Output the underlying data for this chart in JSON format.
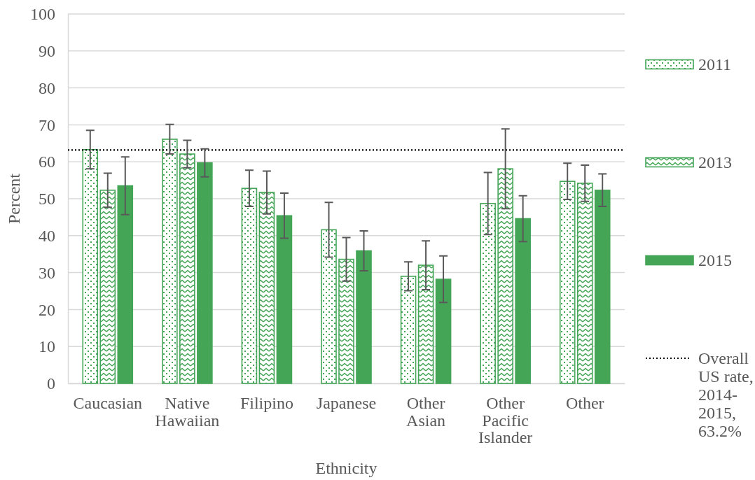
{
  "chart_data": {
    "type": "bar",
    "xlabel": "Ethnicity",
    "ylabel": "Percent",
    "categories": [
      "Caucasian",
      "Native Hawaiian",
      "Filipino",
      "Japanese",
      "Other Asian",
      "Other Pacific Islander",
      "Other"
    ],
    "series": [
      {
        "name": "2011",
        "color": "#44a557",
        "values": [
          63.3,
          66.1,
          52.8,
          41.6,
          29.0,
          48.7,
          54.7
        ],
        "errors": [
          5.2,
          4.0,
          4.9,
          7.4,
          3.9,
          8.4,
          4.9
        ]
      },
      {
        "name": "2013",
        "color": "#44a557",
        "values": [
          52.3,
          62.1,
          51.7,
          33.6,
          32.0,
          58.1,
          54.2
        ],
        "errors": [
          4.6,
          3.7,
          5.8,
          5.9,
          6.6,
          10.8,
          4.9
        ]
      },
      {
        "name": "2015",
        "color": "#44a557",
        "values": [
          53.5,
          59.7,
          45.4,
          35.9,
          28.2,
          44.6,
          52.3
        ],
        "errors": [
          7.8,
          3.8,
          6.1,
          5.4,
          6.3,
          6.2,
          4.4
        ]
      }
    ],
    "ylim": [
      0,
      100
    ],
    "yticks": [
      0,
      10,
      20,
      30,
      40,
      50,
      60,
      70,
      80,
      90,
      100
    ],
    "grid": "y",
    "legend": "right",
    "ref_lines": [
      {
        "axis": "y",
        "value": 63.2,
        "label": "Overall US rate, 2014-2015, 63.2%",
        "color": "#000000",
        "line_style": "dotted"
      }
    ]
  }
}
